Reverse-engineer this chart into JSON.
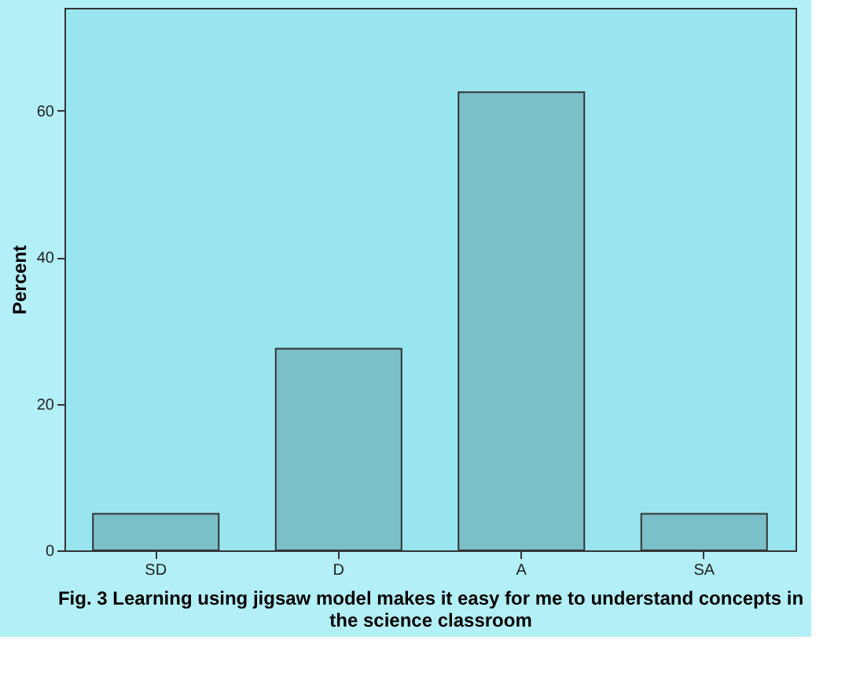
{
  "chart_data": {
    "type": "bar",
    "xlabel": "Fig. 3 Learning using jigsaw model makes it easy for me to understand concepts in the science classroom",
    "ylabel": "Percent",
    "categories": [
      "SD",
      "D",
      "A",
      "SA"
    ],
    "values": [
      5,
      27.5,
      62.5,
      5
    ],
    "color": "#7bbfc9",
    "ylim": [
      0,
      74
    ],
    "yticks": [
      0,
      20,
      40,
      60
    ],
    "grid": false
  }
}
